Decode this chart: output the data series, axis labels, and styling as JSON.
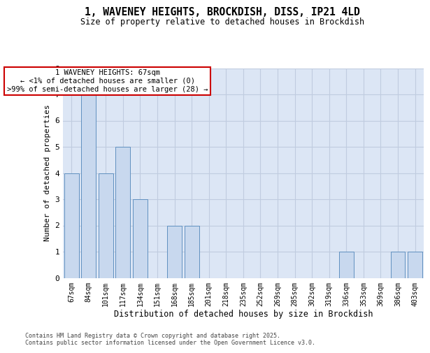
{
  "title_line1": "1, WAVENEY HEIGHTS, BROCKDISH, DISS, IP21 4LD",
  "title_line2": "Size of property relative to detached houses in Brockdish",
  "categories": [
    "67sqm",
    "84sqm",
    "101sqm",
    "117sqm",
    "134sqm",
    "151sqm",
    "168sqm",
    "185sqm",
    "201sqm",
    "218sqm",
    "235sqm",
    "252sqm",
    "269sqm",
    "285sqm",
    "302sqm",
    "319sqm",
    "336sqm",
    "353sqm",
    "369sqm",
    "386sqm",
    "403sqm"
  ],
  "values": [
    4,
    7,
    4,
    5,
    3,
    0,
    2,
    2,
    0,
    0,
    0,
    0,
    0,
    0,
    0,
    0,
    1,
    0,
    0,
    1,
    1
  ],
  "bar_color": "#c8d8ee",
  "bar_edgecolor": "#6090c0",
  "xlabel": "Distribution of detached houses by size in Brockdish",
  "ylabel": "Number of detached properties",
  "ylim": [
    0,
    8
  ],
  "yticks": [
    0,
    1,
    2,
    3,
    4,
    5,
    6,
    7,
    8
  ],
  "grid_color": "#c0cce0",
  "bg_color": "#dce6f5",
  "annotation_text": "1 WAVENEY HEIGHTS: 67sqm\n← <1% of detached houses are smaller (0)\n>99% of semi-detached houses are larger (28) →",
  "annotation_box_edgecolor": "#cc0000",
  "footer_line1": "Contains HM Land Registry data © Crown copyright and database right 2025.",
  "footer_line2": "Contains public sector information licensed under the Open Government Licence v3.0."
}
